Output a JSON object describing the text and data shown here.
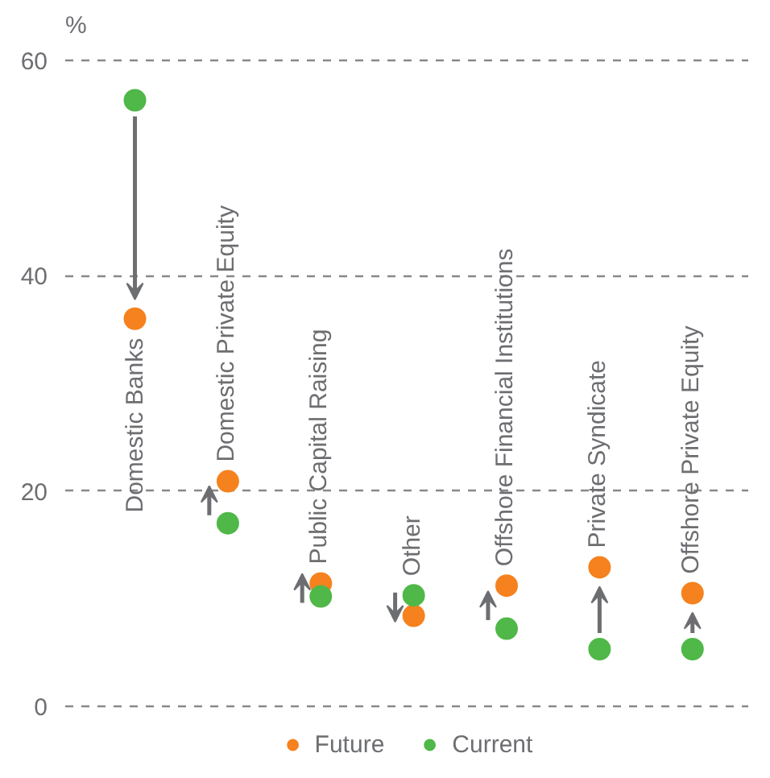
{
  "chart_data": {
    "type": "scatter",
    "ylabel": "%",
    "categories": [
      "Domestic Banks",
      "Domestic Private Equity",
      "Public Capital Raising",
      "Other",
      "Offshore Financial Institutions",
      "Private Syndicate",
      "Offshore Private Equity"
    ],
    "series": [
      {
        "name": "Future",
        "color": "#f5821f",
        "values": [
          36.0,
          20.9,
          11.4,
          8.4,
          11.2,
          12.9,
          10.5
        ]
      },
      {
        "name": "Current",
        "color": "#50b848",
        "values": [
          56.3,
          17.0,
          10.2,
          10.3,
          7.2,
          5.3,
          5.3
        ]
      }
    ],
    "ylim": [
      0,
      60
    ],
    "yticks": [
      0,
      20,
      40,
      60
    ],
    "grid": "y",
    "legend": "bottom",
    "marker": "circle"
  }
}
